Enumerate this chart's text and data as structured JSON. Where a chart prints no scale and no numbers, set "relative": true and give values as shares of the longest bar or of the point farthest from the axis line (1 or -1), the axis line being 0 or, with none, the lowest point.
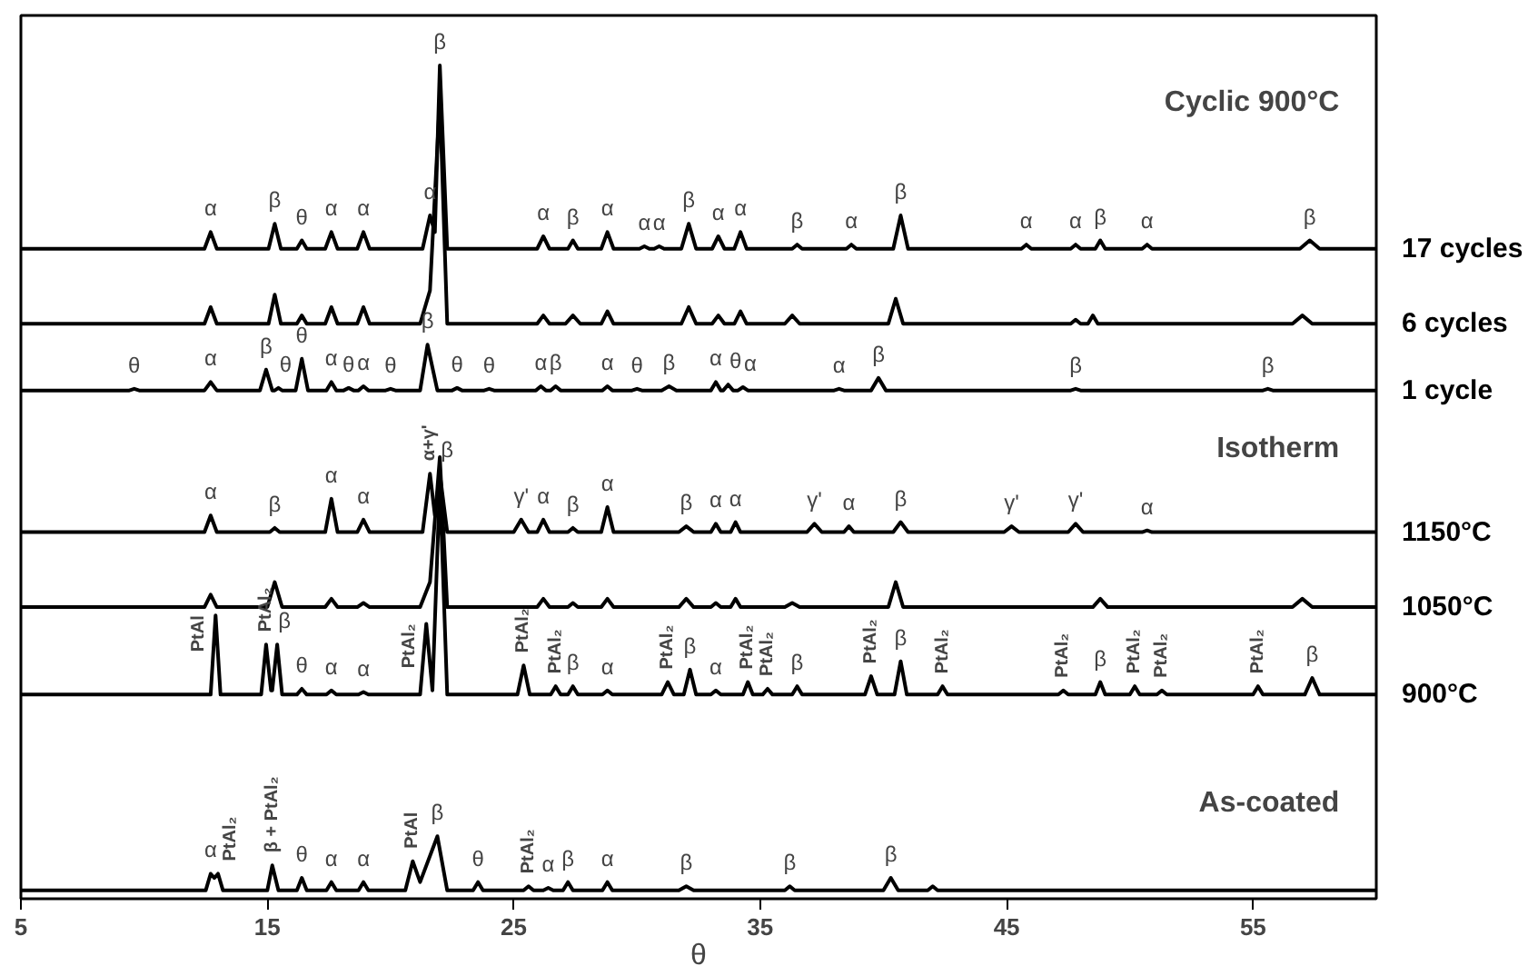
{
  "chart_data": {
    "type": "line",
    "relative": true,
    "xlabel": "θ",
    "xlim": [
      5,
      60
    ],
    "xticks": [
      5,
      15,
      25,
      35,
      45,
      55
    ],
    "grid": false,
    "legend": false,
    "marker": "none",
    "line_style": "solid",
    "series": [
      {
        "name": "17 cycles",
        "color": "#000000",
        "x": [
          5,
          12.45,
          12.7,
          12.95,
          15.05,
          15.3,
          15.55,
          16.2,
          16.4,
          16.6,
          17.35,
          17.6,
          17.85,
          18.65,
          18.9,
          19.15,
          21.3,
          21.6,
          21.8,
          22.0,
          22.3,
          25.95,
          26.2,
          26.45,
          27.2,
          27.4,
          27.6,
          28.55,
          28.8,
          29.05,
          30.1,
          30.3,
          30.5,
          30.7,
          30.9,
          31.1,
          31.8,
          32.1,
          32.4,
          33.05,
          33.3,
          33.55,
          33.95,
          34.2,
          34.45,
          36.3,
          36.5,
          36.7,
          38.5,
          38.7,
          38.9,
          40.4,
          40.7,
          41.0,
          45.6,
          45.8,
          46.0,
          47.6,
          47.8,
          48.0,
          48.6,
          48.8,
          49.0,
          50.5,
          50.7,
          50.9,
          56.9,
          57.3,
          57.7,
          60
        ],
        "values": [
          0.78,
          0.78,
          0.8,
          0.78,
          0.78,
          0.81,
          0.78,
          0.78,
          0.79,
          0.78,
          0.78,
          0.8,
          0.78,
          0.78,
          0.8,
          0.78,
          0.78,
          0.82,
          0.8,
          1.0,
          0.78,
          0.78,
          0.795,
          0.78,
          0.78,
          0.79,
          0.78,
          0.78,
          0.8,
          0.78,
          0.78,
          0.783,
          0.78,
          0.78,
          0.783,
          0.78,
          0.78,
          0.81,
          0.78,
          0.78,
          0.795,
          0.78,
          0.78,
          0.8,
          0.78,
          0.78,
          0.785,
          0.78,
          0.78,
          0.785,
          0.78,
          0.78,
          0.82,
          0.78,
          0.78,
          0.785,
          0.78,
          0.78,
          0.785,
          0.78,
          0.78,
          0.79,
          0.78,
          0.78,
          0.785,
          0.78,
          0.78,
          0.79,
          0.78,
          0.78
        ]
      },
      {
        "name": "6 cycles",
        "color": "#000000",
        "x": [
          5,
          12.45,
          12.7,
          12.95,
          15.05,
          15.3,
          15.55,
          16.2,
          16.4,
          16.6,
          17.35,
          17.6,
          17.85,
          18.65,
          18.9,
          19.15,
          21.2,
          21.6,
          22.0,
          22.3,
          25.95,
          26.2,
          26.45,
          27.1,
          27.4,
          27.7,
          28.55,
          28.8,
          29.05,
          31.8,
          32.1,
          32.4,
          33.05,
          33.3,
          33.55,
          33.95,
          34.2,
          34.45,
          36.0,
          36.3,
          36.6,
          40.2,
          40.5,
          40.8,
          47.6,
          47.8,
          48.0,
          48.3,
          48.5,
          48.7,
          56.6,
          57.0,
          57.4,
          60
        ],
        "values": [
          0.69,
          0.69,
          0.71,
          0.69,
          0.69,
          0.725,
          0.69,
          0.69,
          0.7,
          0.69,
          0.69,
          0.71,
          0.69,
          0.69,
          0.71,
          0.69,
          0.69,
          0.73,
          0.96,
          0.69,
          0.69,
          0.7,
          0.69,
          0.69,
          0.7,
          0.69,
          0.69,
          0.705,
          0.69,
          0.69,
          0.71,
          0.69,
          0.69,
          0.7,
          0.69,
          0.69,
          0.705,
          0.69,
          0.69,
          0.7,
          0.69,
          0.69,
          0.72,
          0.69,
          0.69,
          0.695,
          0.69,
          0.69,
          0.7,
          0.69,
          0.69,
          0.7,
          0.69,
          0.69
        ]
      },
      {
        "name": "1 cycle",
        "color": "#000000",
        "x": [
          5,
          9.4,
          9.6,
          9.8,
          12.45,
          12.7,
          12.95,
          14.7,
          14.95,
          15.2,
          15.3,
          15.45,
          15.6,
          16.15,
          16.4,
          16.65,
          17.4,
          17.6,
          17.8,
          18.1,
          18.3,
          18.5,
          18.7,
          18.9,
          19.1,
          19.8,
          20.0,
          20.2,
          21.2,
          21.5,
          21.9,
          22.5,
          22.7,
          22.9,
          23.8,
          24.0,
          24.2,
          25.9,
          26.1,
          26.3,
          26.5,
          26.7,
          26.9,
          28.6,
          28.8,
          29.0,
          29.8,
          30.0,
          30.2,
          31.0,
          31.3,
          31.6,
          33.0,
          33.2,
          33.4,
          33.5,
          33.7,
          33.9,
          34.1,
          34.3,
          34.5,
          38.0,
          38.2,
          38.4,
          39.5,
          39.8,
          40.1,
          47.6,
          47.8,
          48.0,
          55.4,
          55.6,
          55.8,
          60
        ],
        "values": [
          0.61,
          0.61,
          0.612,
          0.61,
          0.61,
          0.62,
          0.61,
          0.61,
          0.635,
          0.61,
          0.61,
          0.613,
          0.61,
          0.61,
          0.648,
          0.61,
          0.61,
          0.62,
          0.61,
          0.61,
          0.613,
          0.61,
          0.61,
          0.615,
          0.61,
          0.61,
          0.612,
          0.61,
          0.61,
          0.665,
          0.61,
          0.61,
          0.613,
          0.61,
          0.61,
          0.612,
          0.61,
          0.61,
          0.615,
          0.61,
          0.61,
          0.615,
          0.61,
          0.61,
          0.615,
          0.61,
          0.61,
          0.612,
          0.61,
          0.61,
          0.615,
          0.61,
          0.61,
          0.62,
          0.61,
          0.61,
          0.617,
          0.61,
          0.61,
          0.614,
          0.61,
          0.61,
          0.612,
          0.61,
          0.61,
          0.625,
          0.61,
          0.61,
          0.612,
          0.61,
          0.61,
          0.612,
          0.61,
          0.61
        ]
      },
      {
        "name": "1150°C",
        "color": "#000000",
        "x": [
          5,
          12.45,
          12.7,
          12.95,
          15.1,
          15.3,
          15.5,
          17.35,
          17.6,
          17.85,
          18.65,
          18.9,
          19.15,
          21.3,
          21.6,
          21.8,
          22.0,
          22.3,
          25.0,
          25.3,
          25.6,
          25.95,
          26.2,
          26.45,
          27.2,
          27.4,
          27.6,
          28.55,
          28.8,
          29.05,
          31.7,
          32.0,
          32.3,
          33.0,
          33.2,
          33.4,
          33.8,
          34.0,
          34.2,
          36.9,
          37.2,
          37.5,
          38.4,
          38.6,
          38.8,
          40.4,
          40.7,
          41.0,
          44.9,
          45.2,
          45.5,
          47.5,
          47.8,
          48.1,
          50.5,
          50.7,
          50.9,
          60
        ],
        "values": [
          0.44,
          0.44,
          0.46,
          0.44,
          0.44,
          0.445,
          0.44,
          0.44,
          0.48,
          0.44,
          0.44,
          0.455,
          0.44,
          0.44,
          0.51,
          0.46,
          0.51,
          0.44,
          0.44,
          0.455,
          0.44,
          0.44,
          0.455,
          0.44,
          0.44,
          0.445,
          0.44,
          0.44,
          0.47,
          0.44,
          0.44,
          0.447,
          0.44,
          0.44,
          0.45,
          0.44,
          0.44,
          0.452,
          0.44,
          0.44,
          0.45,
          0.44,
          0.44,
          0.447,
          0.44,
          0.44,
          0.452,
          0.44,
          0.44,
          0.447,
          0.44,
          0.44,
          0.45,
          0.44,
          0.44,
          0.442,
          0.44,
          0.44
        ]
      },
      {
        "name": "1050°C",
        "color": "#000000",
        "x": [
          5,
          12.45,
          12.7,
          12.95,
          15.0,
          15.3,
          15.6,
          17.35,
          17.6,
          17.85,
          18.65,
          18.9,
          19.15,
          21.2,
          21.6,
          22.0,
          22.3,
          25.95,
          26.2,
          26.45,
          27.2,
          27.4,
          27.6,
          28.55,
          28.8,
          29.05,
          31.7,
          32.0,
          32.3,
          33.0,
          33.2,
          33.4,
          33.8,
          34.0,
          34.2,
          36.0,
          36.3,
          36.6,
          40.2,
          40.5,
          40.8,
          48.5,
          48.8,
          49.1,
          56.6,
          57.0,
          57.4,
          60
        ],
        "values": [
          0.35,
          0.35,
          0.365,
          0.35,
          0.35,
          0.38,
          0.35,
          0.35,
          0.36,
          0.35,
          0.35,
          0.355,
          0.35,
          0.35,
          0.38,
          0.53,
          0.35,
          0.35,
          0.36,
          0.35,
          0.35,
          0.355,
          0.35,
          0.35,
          0.36,
          0.35,
          0.35,
          0.36,
          0.35,
          0.35,
          0.355,
          0.35,
          0.35,
          0.36,
          0.35,
          0.35,
          0.355,
          0.35,
          0.35,
          0.38,
          0.35,
          0.35,
          0.36,
          0.35,
          0.35,
          0.36,
          0.35,
          0.35
        ]
      },
      {
        "name": "900°C",
        "color": "#000000",
        "x": [
          5,
          12.7,
          12.9,
          13.1,
          14.75,
          14.95,
          15.15,
          15.2,
          15.4,
          15.6,
          16.2,
          16.4,
          16.6,
          17.4,
          17.6,
          17.8,
          18.7,
          18.9,
          19.1,
          21.2,
          21.45,
          21.7,
          22.0,
          22.3,
          25.15,
          25.4,
          25.65,
          26.5,
          26.7,
          26.9,
          27.2,
          27.4,
          27.6,
          28.6,
          28.8,
          29.0,
          31.0,
          31.25,
          31.5,
          31.9,
          32.15,
          32.4,
          33.0,
          33.2,
          33.4,
          34.3,
          34.5,
          34.7,
          35.1,
          35.3,
          35.5,
          36.3,
          36.5,
          36.7,
          39.25,
          39.5,
          39.75,
          40.45,
          40.7,
          40.95,
          42.2,
          42.4,
          42.6,
          47.1,
          47.3,
          47.5,
          48.6,
          48.8,
          49.0,
          50.0,
          50.2,
          50.4,
          51.1,
          51.3,
          51.5,
          55.0,
          55.2,
          55.4,
          57.1,
          57.4,
          57.7,
          60
        ],
        "values": [
          0.245,
          0.245,
          0.34,
          0.245,
          0.245,
          0.305,
          0.25,
          0.25,
          0.305,
          0.245,
          0.245,
          0.252,
          0.245,
          0.245,
          0.25,
          0.245,
          0.245,
          0.248,
          0.245,
          0.245,
          0.33,
          0.25,
          0.5,
          0.245,
          0.245,
          0.28,
          0.245,
          0.245,
          0.255,
          0.245,
          0.245,
          0.255,
          0.245,
          0.245,
          0.25,
          0.245,
          0.245,
          0.26,
          0.245,
          0.245,
          0.275,
          0.245,
          0.245,
          0.25,
          0.245,
          0.245,
          0.26,
          0.245,
          0.245,
          0.252,
          0.245,
          0.245,
          0.255,
          0.245,
          0.245,
          0.267,
          0.245,
          0.245,
          0.285,
          0.245,
          0.245,
          0.255,
          0.245,
          0.245,
          0.25,
          0.245,
          0.245,
          0.26,
          0.245,
          0.245,
          0.255,
          0.245,
          0.245,
          0.25,
          0.245,
          0.245,
          0.255,
          0.245,
          0.245,
          0.265,
          0.245,
          0.245
        ]
      },
      {
        "color": "#000000",
        "x": [
          5,
          12.5,
          12.7,
          12.85,
          13.0,
          13.2,
          15.0,
          15.2,
          15.45,
          16.2,
          16.4,
          16.6,
          17.4,
          17.6,
          17.8,
          18.7,
          18.9,
          19.1,
          20.6,
          20.9,
          21.2,
          21.9,
          22.3,
          23.35,
          23.55,
          23.75,
          25.4,
          25.6,
          25.8,
          26.2,
          26.4,
          26.6,
          27.0,
          27.2,
          27.4,
          28.6,
          28.8,
          29.0,
          31.7,
          32.0,
          32.3,
          36.0,
          36.2,
          36.4,
          40.0,
          40.3,
          40.6,
          41.8,
          42.0,
          42.2,
          60
        ],
        "values": [
          0.01,
          0.01,
          0.03,
          0.025,
          0.03,
          0.01,
          0.01,
          0.04,
          0.01,
          0.01,
          0.025,
          0.01,
          0.01,
          0.02,
          0.01,
          0.01,
          0.02,
          0.01,
          0.01,
          0.045,
          0.02,
          0.075,
          0.01,
          0.01,
          0.02,
          0.01,
          0.01,
          0.015,
          0.01,
          0.01,
          0.013,
          0.01,
          0.01,
          0.02,
          0.01,
          0.01,
          0.02,
          0.01,
          0.01,
          0.015,
          0.01,
          0.01,
          0.015,
          0.01,
          0.01,
          0.025,
          0.01,
          0.01,
          0.015,
          0.01,
          0.01
        ]
      }
    ],
    "annotations": [
      "Cyclic 900°C",
      "Isotherm",
      "As-coated",
      {
        "text": "α",
        "x": 12.7,
        "y": 0.8
      },
      {
        "text": "β",
        "x": 15.3,
        "y": 0.81
      },
      {
        "text": "θ",
        "x": 16.4,
        "y": 0.79
      },
      {
        "text": "α",
        "x": 17.6,
        "y": 0.8
      },
      {
        "text": "α",
        "x": 18.9,
        "y": 0.8
      },
      {
        "text": "α",
        "x": 21.6,
        "y": 0.82
      },
      {
        "text": "β",
        "x": 22.0,
        "y": 1.0
      },
      {
        "text": "α",
        "x": 26.2,
        "y": 0.795
      },
      {
        "text": "β",
        "x": 27.4,
        "y": 0.79
      },
      {
        "text": "α",
        "x": 28.8,
        "y": 0.8
      },
      {
        "text": "α",
        "x": 30.3,
        "y": 0.783
      },
      {
        "text": "α",
        "x": 30.9,
        "y": 0.783
      },
      {
        "text": "β",
        "x": 32.1,
        "y": 0.81
      },
      {
        "text": "α",
        "x": 33.3,
        "y": 0.795
      },
      {
        "text": "α",
        "x": 34.2,
        "y": 0.8
      },
      {
        "text": "β",
        "x": 36.5,
        "y": 0.785
      },
      {
        "text": "α",
        "x": 38.7,
        "y": 0.785
      },
      {
        "text": "β",
        "x": 40.7,
        "y": 0.82
      },
      {
        "text": "α",
        "x": 45.8,
        "y": 0.785
      },
      {
        "text": "α",
        "x": 47.8,
        "y": 0.785
      },
      {
        "text": "β",
        "x": 48.8,
        "y": 0.79
      },
      {
        "text": "α",
        "x": 50.7,
        "y": 0.785
      },
      {
        "text": "β",
        "x": 57.3,
        "y": 0.79
      },
      {
        "text": "θ",
        "x": 9.6,
        "y": 0.612
      },
      {
        "text": "α",
        "x": 12.7,
        "y": 0.62
      },
      {
        "text": "β",
        "x": 14.95,
        "y": 0.635
      },
      {
        "text": "θ",
        "x": 15.45,
        "y": 0.613
      },
      {
        "text": "θ",
        "x": 16.4,
        "y": 0.648
      },
      {
        "text": "α",
        "x": 17.6,
        "y": 0.62
      },
      {
        "text": "θ",
        "x": 18.3,
        "y": 0.613
      },
      {
        "text": "α",
        "x": 18.9,
        "y": 0.615
      },
      {
        "text": "θ",
        "x": 20.0,
        "y": 0.612
      },
      {
        "text": "β",
        "x": 21.5,
        "y": 0.665
      },
      {
        "text": "θ",
        "x": 22.7,
        "y": 0.613
      },
      {
        "text": "θ",
        "x": 24.0,
        "y": 0.612
      },
      {
        "text": "α",
        "x": 26.1,
        "y": 0.615
      },
      {
        "text": "β",
        "x": 26.7,
        "y": 0.615
      },
      {
        "text": "α",
        "x": 28.8,
        "y": 0.615
      },
      {
        "text": "θ",
        "x": 30.0,
        "y": 0.612
      },
      {
        "text": "β",
        "x": 31.3,
        "y": 0.615
      },
      {
        "text": "α",
        "x": 33.2,
        "y": 0.62
      },
      {
        "text": "θ",
        "x": 33.7,
        "y": 0.617
      },
      {
        "text": "α",
        "x": 34.3,
        "y": 0.614
      },
      {
        "text": "α",
        "x": 38.2,
        "y": 0.612
      },
      {
        "text": "β",
        "x": 39.8,
        "y": 0.625
      },
      {
        "text": "β",
        "x": 47.8,
        "y": 0.612
      },
      {
        "text": "β",
        "x": 55.6,
        "y": 0.612
      },
      {
        "text": "α",
        "x": 12.7,
        "y": 0.46
      },
      {
        "text": "β",
        "x": 15.3,
        "y": 0.445
      },
      {
        "text": "α",
        "x": 17.6,
        "y": 0.48
      },
      {
        "text": "α",
        "x": 18.9,
        "y": 0.455
      },
      {
        "text": "α+γ'",
        "x": 21.6,
        "y": 0.51
      },
      {
        "text": "β",
        "x": 22.0,
        "y": 0.51
      },
      {
        "text": "γ'",
        "x": 25.3,
        "y": 0.455
      },
      {
        "text": "α",
        "x": 26.2,
        "y": 0.455
      },
      {
        "text": "β",
        "x": 27.4,
        "y": 0.445
      },
      {
        "text": "α",
        "x": 28.8,
        "y": 0.47
      },
      {
        "text": "β",
        "x": 32.0,
        "y": 0.447
      },
      {
        "text": "α",
        "x": 33.2,
        "y": 0.45
      },
      {
        "text": "α",
        "x": 34.0,
        "y": 0.452
      },
      {
        "text": "γ'",
        "x": 37.2,
        "y": 0.45
      },
      {
        "text": "α",
        "x": 38.6,
        "y": 0.447
      },
      {
        "text": "β",
        "x": 40.7,
        "y": 0.452
      },
      {
        "text": "γ'",
        "x": 45.2,
        "y": 0.447
      },
      {
        "text": "γ'",
        "x": 47.8,
        "y": 0.45
      },
      {
        "text": "α",
        "x": 50.7,
        "y": 0.442
      },
      {
        "text": "PtAl",
        "x": 12.9,
        "y": 0.34
      },
      {
        "text": "PtAl₂",
        "x": 14.95,
        "y": 0.305
      },
      {
        "text": "β",
        "x": 15.4,
        "y": 0.305
      },
      {
        "text": "θ",
        "x": 16.4,
        "y": 0.252
      },
      {
        "text": "α",
        "x": 17.6,
        "y": 0.25
      },
      {
        "text": "α",
        "x": 18.9,
        "y": 0.248
      },
      {
        "text": "PtAl₂",
        "x": 21.45,
        "y": 0.33
      },
      {
        "text": "PtAl₂",
        "x": 25.4,
        "y": 0.28
      },
      {
        "text": "PtAl₂",
        "x": 26.7,
        "y": 0.255
      },
      {
        "text": "β",
        "x": 27.4,
        "y": 0.255
      },
      {
        "text": "α",
        "x": 28.8,
        "y": 0.25
      },
      {
        "text": "PtAl₂",
        "x": 31.25,
        "y": 0.26
      },
      {
        "text": "β",
        "x": 32.15,
        "y": 0.275
      },
      {
        "text": "α",
        "x": 33.2,
        "y": 0.25
      },
      {
        "text": "PtAl₂",
        "x": 34.5,
        "y": 0.26
      },
      {
        "text": "PtAl₂",
        "x": 35.3,
        "y": 0.252
      },
      {
        "text": "β",
        "x": 36.5,
        "y": 0.255
      },
      {
        "text": "PtAl₂",
        "x": 39.5,
        "y": 0.267
      },
      {
        "text": "β",
        "x": 40.7,
        "y": 0.285
      },
      {
        "text": "PtAl₂",
        "x": 42.4,
        "y": 0.255
      },
      {
        "text": "PtAl₂",
        "x": 47.3,
        "y": 0.25
      },
      {
        "text": "β",
        "x": 48.8,
        "y": 0.26
      },
      {
        "text": "PtAl₂",
        "x": 50.2,
        "y": 0.255
      },
      {
        "text": "PtAl₂",
        "x": 51.3,
        "y": 0.25
      },
      {
        "text": "PtAl₂",
        "x": 55.2,
        "y": 0.255
      },
      {
        "text": "β",
        "x": 57.4,
        "y": 0.265
      },
      {
        "text": "α",
        "x": 12.7,
        "y": 0.03
      },
      {
        "text": "PtAl₂",
        "x": 13.0,
        "y": 0.03
      },
      {
        "text": "β + PtAl₂",
        "x": 15.2,
        "y": 0.04
      },
      {
        "text": "θ",
        "x": 16.4,
        "y": 0.025
      },
      {
        "text": "α",
        "x": 17.6,
        "y": 0.02
      },
      {
        "text": "α",
        "x": 18.9,
        "y": 0.02
      },
      {
        "text": "PtAl",
        "x": 20.9,
        "y": 0.045
      },
      {
        "text": "β",
        "x": 21.9,
        "y": 0.075
      },
      {
        "text": "θ",
        "x": 23.55,
        "y": 0.02
      },
      {
        "text": "PtAl₂",
        "x": 25.6,
        "y": 0.015
      },
      {
        "text": "α",
        "x": 26.4,
        "y": 0.013
      },
      {
        "text": "β",
        "x": 27.2,
        "y": 0.02
      },
      {
        "text": "α",
        "x": 28.8,
        "y": 0.02
      },
      {
        "text": "β",
        "x": 32.0,
        "y": 0.015
      },
      {
        "text": "β",
        "x": 36.2,
        "y": 0.015
      },
      {
        "text": "β",
        "x": 40.3,
        "y": 0.025
      }
    ]
  }
}
